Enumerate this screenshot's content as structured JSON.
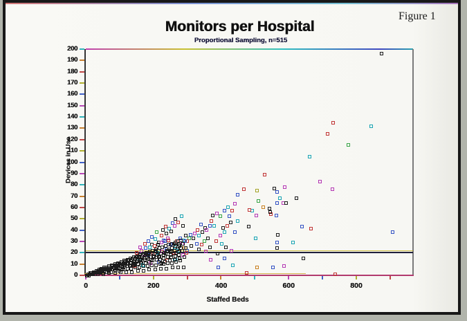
{
  "page": {
    "background": "#b1b4ab",
    "paper": "#f8f8f4",
    "frame_border": "#181818"
  },
  "figure": {
    "label": "Figure 1"
  },
  "chart_data": {
    "type": "scatter",
    "title": "Monitors per Hospital",
    "subtitle": "Proportional Sampling, n=515",
    "xlabel": "Staffed Beds",
    "ylabel": "Devices in Use",
    "xlim": [
      0,
      968
    ],
    "ylim": [
      0,
      200
    ],
    "x_tick_step": 100,
    "x_label_step": 200,
    "y_tick_step": 10,
    "grid": false,
    "legend": null,
    "marker": "open-square",
    "ref_line_y": 20,
    "tick_colors": [
      "#c04848",
      "#c88030",
      "#30b4bc",
      "#b848b8",
      "#4060c8",
      "#b0b030"
    ],
    "point_colors": [
      "#1c1c1c",
      "#c03434",
      "#3452c4",
      "#1aa4b4",
      "#b438b4",
      "#38a448",
      "#c88020",
      "#a4a428"
    ],
    "points": [
      [
        875,
        196
      ],
      [
        845,
        132,
        3
      ],
      [
        732,
        135,
        1
      ],
      [
        715,
        125,
        1
      ],
      [
        776,
        115,
        5
      ],
      [
        662,
        105,
        3
      ],
      [
        908,
        38,
        2
      ],
      [
        737,
        1,
        1
      ],
      [
        729,
        76,
        4
      ],
      [
        693,
        83,
        4
      ],
      [
        639,
        43,
        2
      ],
      [
        666,
        41,
        1
      ],
      [
        623,
        68
      ],
      [
        643,
        15
      ],
      [
        613,
        29,
        3
      ],
      [
        530,
        89,
        1
      ],
      [
        589,
        78,
        4
      ],
      [
        558,
        77
      ],
      [
        565,
        74,
        2
      ],
      [
        575,
        68,
        3
      ],
      [
        510,
        66,
        5
      ],
      [
        565,
        64,
        2
      ],
      [
        584,
        64,
        4
      ],
      [
        592,
        64
      ],
      [
        524,
        60,
        6
      ],
      [
        543,
        59
      ],
      [
        548,
        54,
        1
      ],
      [
        564,
        53,
        2
      ],
      [
        505,
        53,
        4
      ],
      [
        545,
        56
      ],
      [
        468,
        76,
        1
      ],
      [
        507,
        75,
        7
      ],
      [
        493,
        57,
        3
      ],
      [
        483,
        58,
        1
      ],
      [
        449,
        71,
        2
      ],
      [
        442,
        63,
        4
      ],
      [
        450,
        48,
        3
      ],
      [
        482,
        43
      ],
      [
        441,
        38,
        2
      ],
      [
        567,
        36
      ],
      [
        566,
        29,
        2
      ],
      [
        566,
        24
      ],
      [
        502,
        33,
        3
      ],
      [
        369,
        14,
        4
      ],
      [
        391,
        7,
        2
      ],
      [
        434,
        9,
        3
      ],
      [
        476,
        2,
        1
      ],
      [
        507,
        7,
        6
      ],
      [
        553,
        7,
        2
      ],
      [
        587,
        8,
        4
      ],
      [
        371,
        48,
        1
      ],
      [
        367,
        44,
        2
      ],
      [
        380,
        44,
        3
      ],
      [
        352,
        42
      ],
      [
        358,
        40,
        4
      ],
      [
        340,
        45,
        2
      ],
      [
        345,
        38
      ],
      [
        330,
        40,
        1
      ],
      [
        335,
        35,
        3
      ],
      [
        322,
        37,
        4
      ],
      [
        318,
        33
      ],
      [
        310,
        36,
        2
      ],
      [
        305,
        33,
        5
      ],
      [
        300,
        30,
        1
      ],
      [
        295,
        35
      ],
      [
        290,
        31,
        3
      ],
      [
        285,
        28,
        4
      ],
      [
        280,
        33,
        2
      ],
      [
        275,
        27
      ],
      [
        270,
        30,
        1
      ],
      [
        265,
        25,
        3
      ],
      [
        260,
        28
      ],
      [
        255,
        24,
        4
      ],
      [
        250,
        27,
        2
      ],
      [
        248,
        22
      ],
      [
        398,
        35,
        4
      ],
      [
        406,
        42
      ],
      [
        411,
        38,
        3
      ],
      [
        418,
        44,
        1
      ],
      [
        424,
        52,
        2
      ],
      [
        429,
        47
      ],
      [
        398,
        52,
        5
      ],
      [
        388,
        55,
        4
      ],
      [
        376,
        53
      ],
      [
        410,
        57,
        2
      ],
      [
        421,
        60,
        3
      ],
      [
        433,
        57,
        1
      ],
      [
        292,
        24,
        6
      ],
      [
        312,
        26
      ],
      [
        328,
        28,
        2
      ],
      [
        350,
        30,
        5
      ],
      [
        362,
        33
      ],
      [
        385,
        30,
        1
      ],
      [
        402,
        28,
        3
      ],
      [
        415,
        25
      ],
      [
        430,
        22,
        4
      ],
      [
        260,
        20,
        1
      ],
      [
        272,
        22,
        3
      ],
      [
        300,
        22,
        2
      ],
      [
        335,
        23
      ],
      [
        355,
        21,
        4
      ],
      [
        390,
        19
      ],
      [
        410,
        15,
        2
      ],
      [
        368,
        25
      ],
      [
        342,
        27,
        1
      ],
      [
        160,
        25,
        4
      ],
      [
        175,
        28,
        1
      ],
      [
        185,
        30,
        2
      ],
      [
        195,
        27
      ],
      [
        205,
        32,
        3
      ],
      [
        215,
        29
      ],
      [
        225,
        35,
        1
      ],
      [
        230,
        31,
        2
      ],
      [
        238,
        37
      ],
      [
        242,
        33,
        4
      ],
      [
        228,
        40
      ],
      [
        210,
        38,
        5
      ],
      [
        196,
        34,
        2
      ],
      [
        246,
        41,
        3
      ],
      [
        236,
        43,
        1
      ],
      [
        252,
        39
      ],
      [
        256,
        46,
        2
      ],
      [
        262,
        44,
        4
      ],
      [
        266,
        50
      ],
      [
        274,
        47,
        1
      ],
      [
        284,
        52,
        3
      ],
      [
        288,
        44
      ],
      [
        294,
        30,
        2
      ],
      [
        296,
        24
      ],
      [
        298,
        20,
        1
      ],
      [
        150,
        20,
        1
      ],
      [
        165,
        22,
        4
      ],
      [
        178,
        24,
        2
      ],
      [
        190,
        25,
        3
      ],
      [
        204,
        26,
        1
      ],
      [
        214,
        27
      ],
      [
        224,
        29,
        4
      ],
      [
        234,
        30,
        2
      ],
      [
        244,
        31,
        1
      ],
      [
        158,
        14,
        3
      ],
      [
        172,
        16,
        4
      ],
      [
        186,
        18,
        2
      ],
      [
        200,
        19,
        1
      ],
      [
        212,
        20,
        3
      ],
      [
        226,
        21,
        4
      ],
      [
        238,
        23,
        2
      ],
      [
        144,
        8,
        1
      ],
      [
        168,
        9,
        3
      ],
      [
        192,
        11,
        4
      ],
      [
        216,
        12,
        2
      ],
      [
        240,
        13,
        1
      ],
      [
        264,
        14,
        3
      ],
      [
        288,
        18,
        4
      ],
      [
        58,
        7
      ],
      [
        68,
        8
      ],
      [
        77,
        9
      ],
      [
        86,
        10
      ],
      [
        96,
        11
      ],
      [
        105,
        12
      ],
      [
        114,
        13
      ],
      [
        124,
        14
      ],
      [
        133,
        15
      ],
      [
        142,
        16
      ],
      [
        152,
        17
      ],
      [
        161,
        18
      ],
      [
        170,
        19
      ],
      [
        180,
        20
      ],
      [
        189,
        21
      ],
      [
        198,
        22
      ],
      [
        208,
        23
      ],
      [
        217,
        24
      ],
      [
        226,
        25
      ],
      [
        236,
        26
      ],
      [
        245,
        27
      ],
      [
        254,
        28
      ],
      [
        264,
        29
      ],
      [
        273,
        30
      ],
      [
        282,
        31
      ],
      [
        31,
        3
      ],
      [
        41,
        4
      ],
      [
        52,
        5
      ],
      [
        62,
        6
      ],
      [
        72,
        6
      ],
      [
        82,
        7
      ],
      [
        92,
        8
      ],
      [
        102,
        9
      ],
      [
        112,
        10
      ],
      [
        122,
        11
      ],
      [
        132,
        11
      ],
      [
        142,
        12
      ],
      [
        152,
        13
      ],
      [
        162,
        14
      ],
      [
        172,
        15
      ],
      [
        182,
        16
      ],
      [
        192,
        16
      ],
      [
        202,
        17
      ],
      [
        212,
        18
      ],
      [
        222,
        19
      ],
      [
        232,
        20
      ],
      [
        242,
        21
      ],
      [
        252,
        21
      ],
      [
        262,
        22
      ],
      [
        272,
        23
      ],
      [
        281,
        24
      ],
      [
        22,
        1
      ],
      [
        33,
        2
      ],
      [
        44,
        3
      ],
      [
        55,
        4
      ],
      [
        66,
        4
      ],
      [
        77,
        5
      ],
      [
        88,
        6
      ],
      [
        99,
        6
      ],
      [
        110,
        7
      ],
      [
        121,
        8
      ],
      [
        132,
        9
      ],
      [
        143,
        9
      ],
      [
        154,
        10
      ],
      [
        165,
        11
      ],
      [
        176,
        11
      ],
      [
        187,
        12
      ],
      [
        198,
        13
      ],
      [
        209,
        14
      ],
      [
        220,
        14
      ],
      [
        231,
        15
      ],
      [
        242,
        16
      ],
      [
        253,
        16
      ],
      [
        264,
        17
      ],
      [
        275,
        18
      ],
      [
        27,
        1
      ],
      [
        39,
        2
      ],
      [
        51,
        2
      ],
      [
        63,
        3
      ],
      [
        75,
        3
      ],
      [
        87,
        4
      ],
      [
        99,
        4
      ],
      [
        111,
        5
      ],
      [
        123,
        6
      ],
      [
        135,
        6
      ],
      [
        147,
        7
      ],
      [
        159,
        7
      ],
      [
        171,
        8
      ],
      [
        183,
        8
      ],
      [
        195,
        9
      ],
      [
        207,
        9
      ],
      [
        219,
        10
      ],
      [
        231,
        10
      ],
      [
        243,
        11
      ],
      [
        255,
        11
      ],
      [
        267,
        12
      ],
      [
        279,
        13
      ],
      [
        35,
        1
      ],
      [
        52,
        1
      ],
      [
        69,
        2
      ],
      [
        86,
        2
      ],
      [
        103,
        3
      ],
      [
        120,
        3
      ],
      [
        137,
        3
      ],
      [
        154,
        4
      ],
      [
        171,
        4
      ],
      [
        188,
        5
      ],
      [
        205,
        5
      ],
      [
        222,
        6
      ],
      [
        239,
        6
      ],
      [
        256,
        7
      ],
      [
        273,
        7
      ],
      [
        290,
        7
      ],
      [
        4,
        0
      ],
      [
        7,
        1
      ],
      [
        9,
        0
      ],
      [
        11,
        1
      ],
      [
        13,
        2
      ],
      [
        15,
        1
      ],
      [
        17,
        2
      ],
      [
        19,
        1
      ],
      [
        21,
        2
      ],
      [
        23,
        3
      ],
      [
        25,
        2
      ],
      [
        27,
        3
      ],
      [
        29,
        2
      ],
      [
        31,
        4
      ],
      [
        33,
        3
      ],
      [
        35,
        4
      ],
      [
        37,
        3
      ],
      [
        39,
        5
      ],
      [
        41,
        4
      ],
      [
        43,
        5
      ],
      [
        45,
        4
      ],
      [
        47,
        6
      ],
      [
        49,
        5
      ],
      [
        51,
        6
      ],
      [
        53,
        5
      ],
      [
        55,
        7
      ],
      [
        57,
        6
      ],
      [
        59,
        7
      ],
      [
        6,
        0
      ],
      [
        10,
        0
      ],
      [
        14,
        1
      ],
      [
        18,
        1
      ],
      [
        22,
        2
      ],
      [
        26,
        2
      ],
      [
        30,
        3
      ],
      [
        34,
        2
      ],
      [
        38,
        4
      ],
      [
        42,
        3
      ],
      [
        46,
        5
      ],
      [
        50,
        4
      ],
      [
        54,
        6
      ],
      [
        58,
        5
      ],
      [
        12,
        1
      ],
      [
        16,
        2
      ],
      [
        20,
        1
      ],
      [
        24,
        2
      ],
      [
        28,
        3
      ],
      [
        32,
        2
      ],
      [
        36,
        3
      ],
      [
        40,
        4
      ],
      [
        44,
        3
      ],
      [
        48,
        4
      ],
      [
        56,
        6
      ],
      [
        8,
        1
      ],
      [
        60,
        5
      ],
      [
        64,
        6
      ],
      [
        68,
        7
      ],
      [
        73,
        7
      ],
      [
        78,
        8
      ],
      [
        84,
        9
      ],
      [
        89,
        9
      ],
      [
        94,
        10
      ],
      [
        100,
        10
      ],
      [
        106,
        11
      ],
      [
        111,
        11
      ],
      [
        116,
        12
      ],
      [
        126,
        13
      ],
      [
        136,
        14
      ],
      [
        146,
        15
      ],
      [
        156,
        16
      ],
      [
        166,
        17
      ],
      [
        176,
        18
      ],
      [
        186,
        19
      ],
      [
        196,
        20
      ],
      [
        206,
        21
      ],
      [
        216,
        22
      ],
      [
        118,
        13
      ],
      [
        128,
        14
      ],
      [
        138,
        15
      ],
      [
        148,
        16
      ],
      [
        158,
        17
      ],
      [
        168,
        18
      ],
      [
        178,
        19
      ],
      [
        188,
        20
      ],
      [
        208,
        22
      ],
      [
        90,
        7
      ],
      [
        105,
        8
      ],
      [
        115,
        9
      ],
      [
        125,
        10
      ],
      [
        140,
        11
      ],
      [
        150,
        12
      ],
      [
        160,
        13
      ],
      [
        175,
        14
      ],
      [
        185,
        15
      ],
      [
        200,
        16
      ],
      [
        215,
        17
      ],
      [
        230,
        18
      ],
      [
        70,
        5
      ],
      [
        85,
        6
      ],
      [
        95,
        7
      ],
      [
        108,
        6
      ],
      [
        130,
        8
      ],
      [
        145,
        10
      ],
      [
        163,
        12
      ],
      [
        193,
        14
      ],
      [
        218,
        16
      ],
      [
        237,
        19
      ],
      [
        246,
        23
      ],
      [
        250,
        18
      ],
      [
        258,
        19
      ],
      [
        268,
        20
      ],
      [
        276,
        21
      ],
      [
        286,
        22
      ],
      [
        249,
        13
      ],
      [
        262,
        14
      ],
      [
        278,
        15
      ],
      [
        292,
        16
      ],
      [
        235,
        12
      ],
      [
        225,
        11
      ],
      [
        240,
        22
      ],
      [
        255,
        24
      ],
      [
        265,
        26
      ],
      [
        277,
        26
      ],
      [
        287,
        28
      ]
    ]
  }
}
